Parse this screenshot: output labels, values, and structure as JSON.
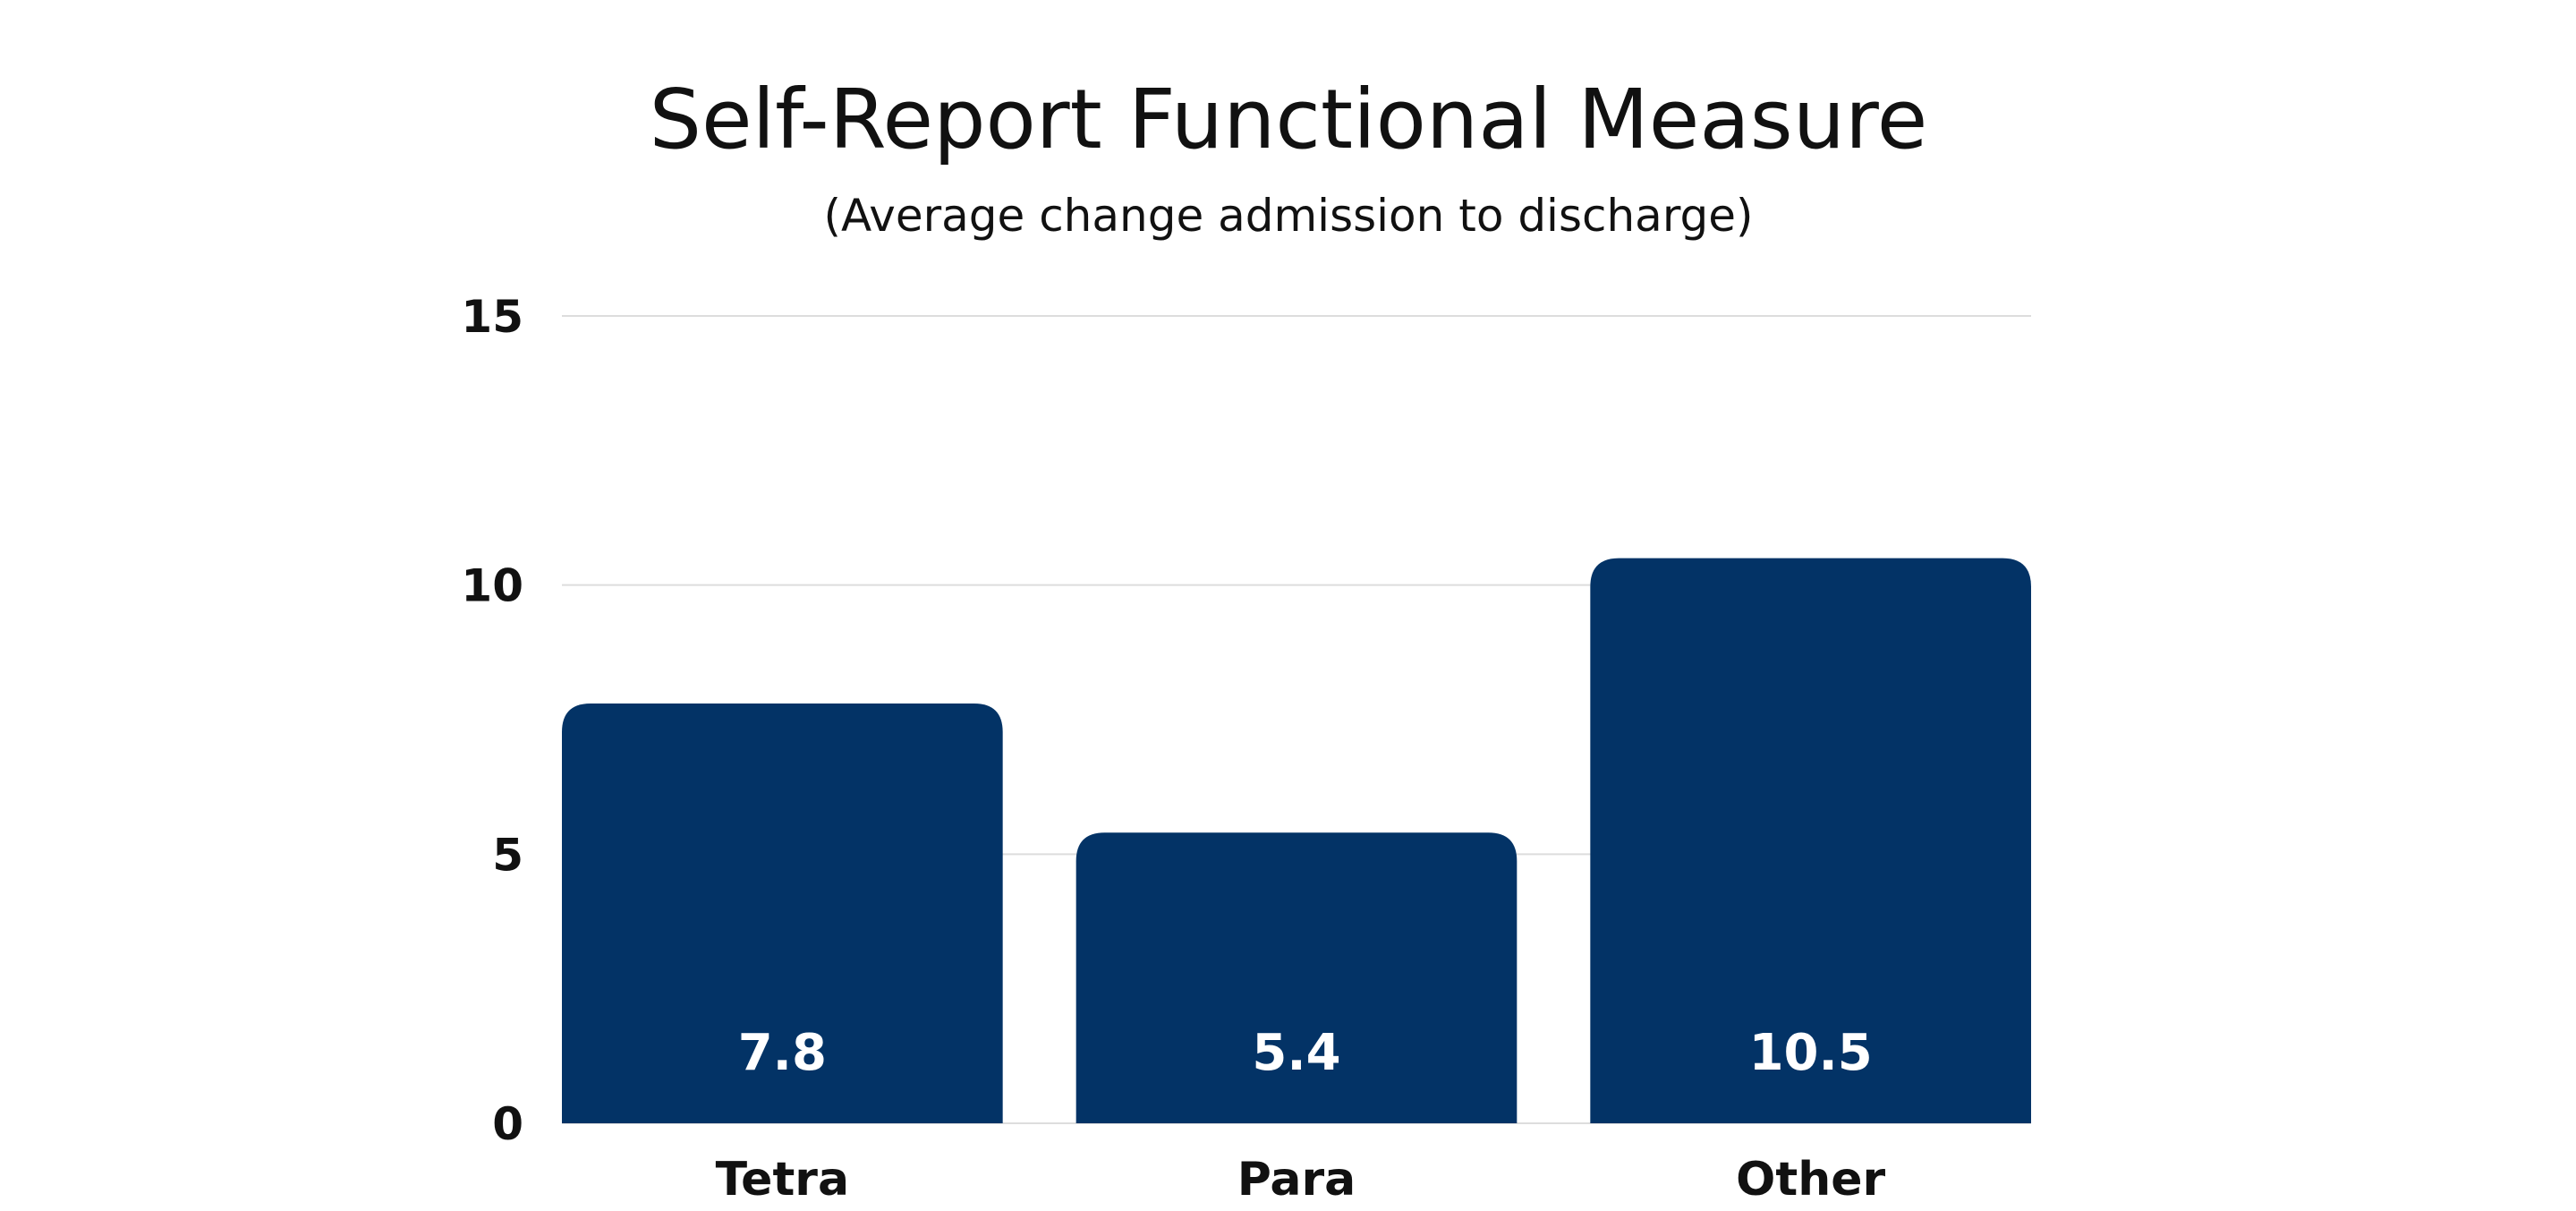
{
  "chart_data": {
    "type": "bar",
    "title": "Self-Report Functional Measure",
    "subtitle": "(Average change admission to discharge)",
    "categories": [
      "Tetra",
      "Para",
      "Other"
    ],
    "values": [
      7.8,
      5.4,
      10.5
    ],
    "value_labels": [
      "7.8",
      "5.4",
      "10.5"
    ],
    "ylim": [
      0,
      15
    ],
    "yticks": [
      0,
      5,
      10,
      15
    ],
    "ytick_labels": [
      "0",
      "5",
      "10",
      "15"
    ],
    "xlabel": "",
    "ylabel": "",
    "grid": true,
    "legend": "none",
    "colors": {
      "bar": "#033366",
      "bar_label": "#ffffff",
      "text": "#111111",
      "grid": "#dddddd"
    }
  }
}
